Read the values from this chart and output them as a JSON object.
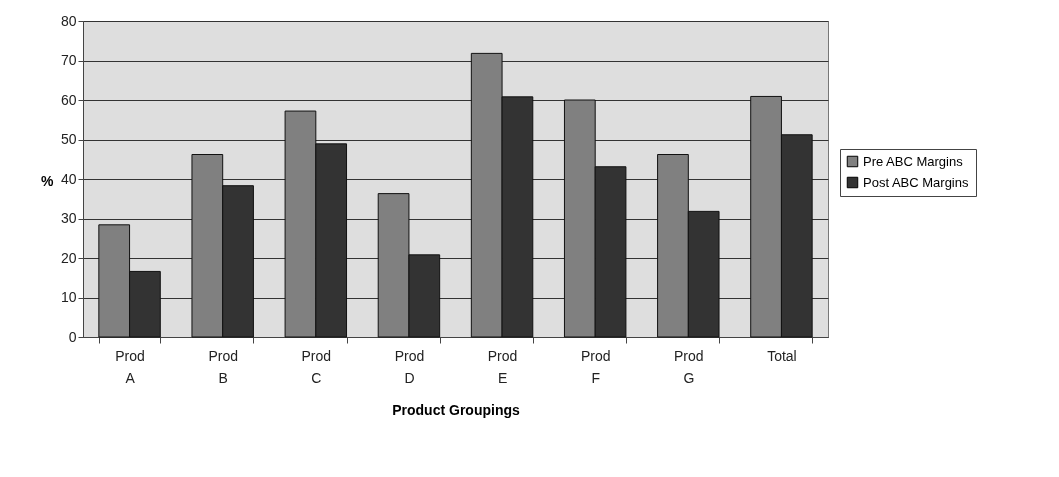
{
  "chart_data": {
    "type": "bar",
    "xlabel": "Product Groupings",
    "ylabel": "%",
    "categories": [
      "Prod A",
      "Prod B",
      "Prod C",
      "Prod D",
      "Prod E",
      "Prod F",
      "Prod G",
      "Total"
    ],
    "series": [
      {
        "name": "Pre ABC Margins",
        "color": "#808080",
        "values": [
          28.4,
          46.2,
          57.2,
          36.3,
          71.8,
          60,
          46.2,
          60.9
        ]
      },
      {
        "name": "Post ABC Margins",
        "color": "#333333",
        "values": [
          16.6,
          38.3,
          48.9,
          20.8,
          60.8,
          43.1,
          31.8,
          51.2
        ]
      }
    ],
    "ylim": [
      0,
      80
    ],
    "yticks": [
      0,
      10,
      20,
      30,
      40,
      50,
      60,
      70,
      80
    ],
    "grid": "y",
    "legend": "right"
  }
}
